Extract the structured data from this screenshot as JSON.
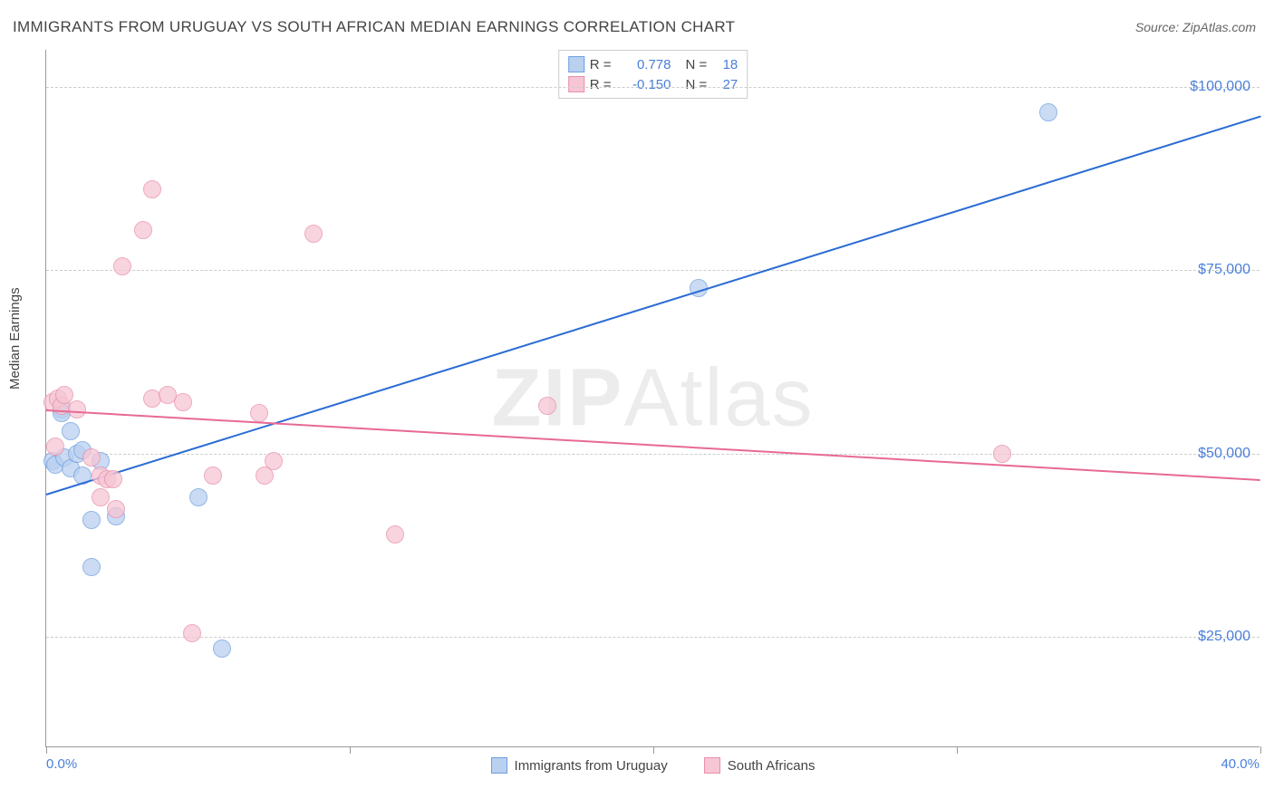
{
  "title": "IMMIGRANTS FROM URUGUAY VS SOUTH AFRICAN MEDIAN EARNINGS CORRELATION CHART",
  "source": "Source: ZipAtlas.com",
  "ylabel": "Median Earnings",
  "watermark_bold": "ZIP",
  "watermark_light": "Atlas",
  "chart": {
    "type": "scatter",
    "plot_background": "#ffffff",
    "grid_color": "#cccccc",
    "axis_color": "#999999",
    "x_min": 0.0,
    "x_max": 40.0,
    "y_min": 10000,
    "y_max": 105000,
    "y_gridlines": [
      25000,
      50000,
      75000,
      100000
    ],
    "y_tick_labels": [
      "$25,000",
      "$50,000",
      "$75,000",
      "$100,000"
    ],
    "x_ticks": [
      0,
      10,
      20,
      30,
      40
    ],
    "x_axis_min_label": "0.0%",
    "x_axis_max_label": "40.0%",
    "tick_label_color": "#4a7fd8",
    "marker_radius": 10,
    "marker_border_width": 1.5,
    "series": [
      {
        "name": "Immigrants from Uruguay",
        "fill": "#b9d0ef",
        "stroke": "#6f9fe0",
        "fill_opacity": 0.75,
        "R": "0.778",
        "N": "18",
        "points": [
          [
            0.2,
            49000
          ],
          [
            0.3,
            48500
          ],
          [
            0.5,
            56000
          ],
          [
            0.5,
            55500
          ],
          [
            0.6,
            49500
          ],
          [
            0.8,
            48000
          ],
          [
            0.8,
            53000
          ],
          [
            1.0,
            50000
          ],
          [
            1.2,
            47000
          ],
          [
            1.2,
            50500
          ],
          [
            1.5,
            41000
          ],
          [
            1.5,
            34500
          ],
          [
            1.8,
            49000
          ],
          [
            2.3,
            41500
          ],
          [
            5.0,
            44000
          ],
          [
            5.8,
            23500
          ],
          [
            21.5,
            72500
          ],
          [
            33.0,
            96500
          ]
        ],
        "trend": {
          "x1": 0,
          "y1": 44500,
          "x2": 40,
          "y2": 96000,
          "color": "#2b6cd4",
          "width": 2
        }
      },
      {
        "name": "South Africans",
        "fill": "#f6c6d4",
        "stroke": "#e98fab",
        "fill_opacity": 0.75,
        "R": "-0.150",
        "N": "27",
        "points": [
          [
            0.2,
            57000
          ],
          [
            0.3,
            51000
          ],
          [
            0.4,
            57500
          ],
          [
            0.5,
            56500
          ],
          [
            0.6,
            58000
          ],
          [
            1.0,
            56000
          ],
          [
            1.5,
            49500
          ],
          [
            1.8,
            44000
          ],
          [
            1.8,
            47000
          ],
          [
            2.0,
            46500
          ],
          [
            2.2,
            46500
          ],
          [
            2.3,
            42500
          ],
          [
            2.5,
            75500
          ],
          [
            3.2,
            80500
          ],
          [
            3.5,
            57500
          ],
          [
            3.5,
            86000
          ],
          [
            4.0,
            58000
          ],
          [
            4.5,
            57000
          ],
          [
            4.8,
            25500
          ],
          [
            5.5,
            47000
          ],
          [
            7.0,
            55500
          ],
          [
            7.2,
            47000
          ],
          [
            7.5,
            49000
          ],
          [
            8.8,
            80000
          ],
          [
            11.5,
            39000
          ],
          [
            16.5,
            56500
          ],
          [
            31.5,
            50000
          ]
        ],
        "trend": {
          "x1": 0,
          "y1": 56000,
          "x2": 40,
          "y2": 46500,
          "color": "#e76a94",
          "width": 2
        }
      }
    ],
    "legend_top": {
      "border_color": "#cccccc",
      "value_color": "#4a7fd8",
      "label_R": "R  =",
      "label_N": "N  ="
    },
    "legend_bottom_labels": [
      "Immigrants from Uruguay",
      "South Africans"
    ]
  }
}
